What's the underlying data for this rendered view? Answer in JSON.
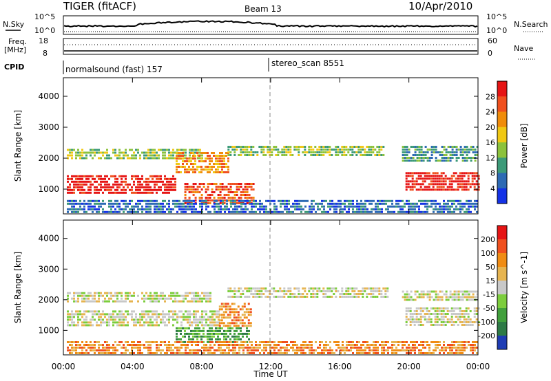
{
  "header": {
    "title": "TIGER (fitACF)",
    "beam": "Beam 13",
    "date": "10/Apr/2010"
  },
  "top_panels": {
    "nsky_label": "N.Sky",
    "nsky_ticks": [
      "10^5",
      "10^0"
    ],
    "nsearch_label": "N.Search",
    "nsearch_ticks": [
      "10^5",
      "10^0"
    ],
    "freq_label_1": "Freq.",
    "freq_label_2": "[MHz]",
    "freq_ticks": [
      "18",
      "8"
    ],
    "nave_label": "Nave",
    "nave_ticks": [
      "60",
      "0"
    ],
    "cpid_label": "CPID",
    "cpid_segments": [
      {
        "label": "normalsound (fast) 157"
      },
      {
        "label": "stereo_scan 8551"
      }
    ]
  },
  "chart_data": [
    {
      "type": "heatmap",
      "title": "",
      "ylabel": "Slant Range [km]",
      "xlabel": "Time UT",
      "x_tick_labels": [
        "00:00",
        "04:00",
        "08:00",
        "12:00",
        "16:00",
        "20:00",
        "00:00"
      ],
      "y_tick_labels": [
        "1000",
        "2000",
        "3000",
        "4000"
      ],
      "ylim": [
        200,
        4600
      ],
      "xlim_hours": [
        0,
        24
      ],
      "colorbar_label": "Power [dB]",
      "colorbar_ticks": [
        "4",
        "8",
        "12",
        "16",
        "20",
        "24",
        "28"
      ],
      "colorbar_colors": [
        "#1432e6",
        "#2d6ab4",
        "#3c9a78",
        "#8cc23c",
        "#f0c814",
        "#f08c0a",
        "#f0501e",
        "#e61414"
      ],
      "bands": [
        {
          "t0": 0.2,
          "t1": 6.5,
          "r0": 850,
          "r1": 1450,
          "level": 7,
          "note_start_range": 1000
        },
        {
          "t0": 0.2,
          "t1": 8.0,
          "r0": 1950,
          "r1": 2300,
          "level": 3
        },
        {
          "t0": 6.5,
          "t1": 9.5,
          "r0": 1500,
          "r1": 2200,
          "level": 5
        },
        {
          "t0": 7.0,
          "t1": 11.0,
          "r0": 500,
          "r1": 1200,
          "level": 6
        },
        {
          "t0": 9.5,
          "t1": 18.5,
          "r0": 2050,
          "r1": 2400,
          "level": 3
        },
        {
          "t0": 19.8,
          "t1": 24.0,
          "r0": 1000,
          "r1": 1550,
          "level": 7
        },
        {
          "t0": 19.6,
          "t1": 24.0,
          "r0": 1900,
          "r1": 2400,
          "level": 2
        },
        {
          "t0": 0.2,
          "t1": 24.0,
          "r0": 250,
          "r1": 650,
          "level": 1
        }
      ]
    },
    {
      "type": "heatmap",
      "title": "",
      "ylabel": "Slant Range [km]",
      "xlabel": "Time UT",
      "x_tick_labels": [
        "00:00",
        "04:00",
        "08:00",
        "12:00",
        "16:00",
        "20:00",
        "00:00"
      ],
      "y_tick_labels": [
        "1000",
        "2000",
        "3000",
        "4000"
      ],
      "ylim": [
        200,
        4600
      ],
      "xlim_hours": [
        0,
        24
      ],
      "colorbar_label": "Velocity [m s^-1]",
      "colorbar_ticks": [
        "200",
        "100",
        "50",
        "15",
        "-15",
        "-50",
        "-100",
        "-200"
      ],
      "colorbar_colors": [
        "#1e3cb4",
        "#2d7a46",
        "#41a03c",
        "#7ccd3c",
        "#c8c8c8",
        "#e6b450",
        "#f08c14",
        "#f0501e",
        "#e61414"
      ],
      "bands": [
        {
          "t0": 0.2,
          "t1": 9.0,
          "r0": 1150,
          "r1": 1650,
          "level": 4
        },
        {
          "t0": 0.2,
          "t1": 8.5,
          "r0": 1950,
          "r1": 2250,
          "level": 4
        },
        {
          "t0": 6.5,
          "t1": 10.8,
          "r0": 600,
          "r1": 1100,
          "level": 2
        },
        {
          "t0": 9.0,
          "t1": 10.8,
          "r0": 1100,
          "r1": 1900,
          "level": 6
        },
        {
          "t0": 9.5,
          "t1": 18.8,
          "r0": 2100,
          "r1": 2400,
          "level": 4
        },
        {
          "t0": 19.8,
          "t1": 24.0,
          "r0": 1150,
          "r1": 1750,
          "level": 4
        },
        {
          "t0": 19.6,
          "t1": 24.0,
          "r0": 1950,
          "r1": 2300,
          "level": 4
        },
        {
          "t0": 0.2,
          "t1": 24.0,
          "r0": 250,
          "r1": 650,
          "level": 6
        }
      ]
    }
  ]
}
